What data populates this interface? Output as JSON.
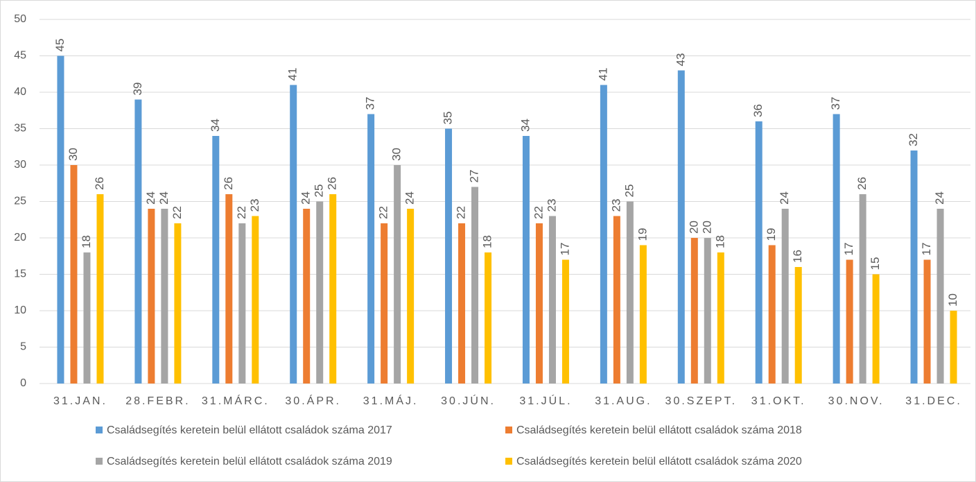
{
  "chart_data": {
    "type": "bar",
    "categories": [
      "31.JAN.",
      "28.FEBR.",
      "31.MÁRC.",
      "30.ÁPR.",
      "31.MÁJ.",
      "30.JÚN.",
      "31.JÚL.",
      "31.AUG.",
      "30.SZEPT.",
      "31.OKT.",
      "30.NOV.",
      "31.DEC."
    ],
    "series": [
      {
        "name": "Családsegítés keretein belül ellátott családok száma 2017",
        "color": "#5b9bd5",
        "values": [
          45,
          39,
          34,
          41,
          37,
          35,
          34,
          41,
          43,
          36,
          37,
          32
        ]
      },
      {
        "name": "Családsegítés keretein belül ellátott családok száma 2018",
        "color": "#ed7d31",
        "values": [
          30,
          24,
          26,
          24,
          22,
          22,
          22,
          23,
          20,
          19,
          17,
          17
        ]
      },
      {
        "name": "Családsegítés keretein belül ellátott családok száma 2019",
        "color": "#a5a5a5",
        "values": [
          18,
          24,
          22,
          25,
          30,
          27,
          23,
          25,
          20,
          24,
          26,
          24
        ]
      },
      {
        "name": "Családsegítés keretein belül ellátott családok száma 2020",
        "color": "#ffc000",
        "values": [
          26,
          22,
          23,
          26,
          24,
          18,
          17,
          19,
          18,
          16,
          15,
          10
        ]
      }
    ],
    "ylim": [
      0,
      50
    ],
    "yticks": [
      0,
      5,
      10,
      15,
      20,
      25,
      30,
      35,
      40,
      45,
      50
    ],
    "grid": true,
    "legend": "bottom"
  }
}
